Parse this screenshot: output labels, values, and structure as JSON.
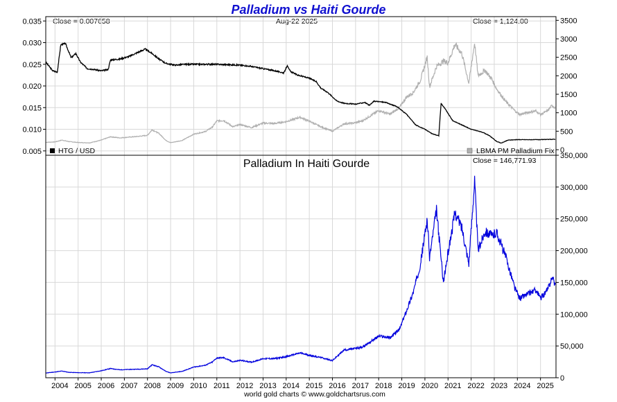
{
  "chart_data": [
    {
      "type": "line",
      "title": "Palladium vs Haiti Gourde",
      "date_label": "Aug-22  2025",
      "x_ticks": [
        "2004",
        "2005",
        "2006",
        "2007",
        "2008",
        "2009",
        "2010",
        "2011",
        "2012",
        "2013",
        "2014",
        "2015",
        "2016",
        "2017",
        "2018",
        "2019",
        "2020",
        "2021",
        "2022",
        "2023",
        "2024",
        "2025"
      ],
      "left_axis": {
        "ylim": [
          0.004,
          0.036
        ],
        "ticks": [
          "0.035",
          "0.030",
          "0.025",
          "0.020",
          "0.015",
          "0.010",
          "0.005"
        ],
        "tick_values": [
          0.035,
          0.03,
          0.025,
          0.02,
          0.015,
          0.01,
          0.005
        ]
      },
      "right_axis": {
        "ylim": [
          -150,
          3600
        ],
        "ticks": [
          "3500",
          "3000",
          "2500",
          "2000",
          "1500",
          "1000",
          "500",
          "0"
        ],
        "tick_values": [
          3500,
          3000,
          2500,
          2000,
          1500,
          1000,
          500,
          0
        ]
      },
      "close_left": "Close = 0.007658",
      "close_right": "Close = 1,124.00",
      "grid": true,
      "series": [
        {
          "name": "HTG / USD",
          "axis": "left",
          "color": "#000000",
          "points": [
            [
              2003.6,
              0.0255
            ],
            [
              2003.9,
              0.0235
            ],
            [
              2004.1,
              0.0232
            ],
            [
              2004.25,
              0.0295
            ],
            [
              2004.45,
              0.0298
            ],
            [
              2004.7,
              0.0265
            ],
            [
              2004.9,
              0.0275
            ],
            [
              2005.1,
              0.0255
            ],
            [
              2005.4,
              0.024
            ],
            [
              2005.7,
              0.0238
            ],
            [
              2006.0,
              0.0235
            ],
            [
              2006.3,
              0.0238
            ],
            [
              2006.4,
              0.026
            ],
            [
              2006.8,
              0.0262
            ],
            [
              2007.2,
              0.0268
            ],
            [
              2007.6,
              0.0278
            ],
            [
              2007.9,
              0.0285
            ],
            [
              2008.2,
              0.0275
            ],
            [
              2008.5,
              0.0262
            ],
            [
              2008.8,
              0.0252
            ],
            [
              2009.2,
              0.0248
            ],
            [
              2009.6,
              0.025
            ],
            [
              2010.0,
              0.025
            ],
            [
              2011.0,
              0.025
            ],
            [
              2012.0,
              0.0248
            ],
            [
              2012.5,
              0.0245
            ],
            [
              2013.0,
              0.024
            ],
            [
              2013.5,
              0.0235
            ],
            [
              2013.9,
              0.023
            ],
            [
              2014.05,
              0.0248
            ],
            [
              2014.1,
              0.024
            ],
            [
              2014.2,
              0.0233
            ],
            [
              2014.5,
              0.0225
            ],
            [
              2015.0,
              0.0218
            ],
            [
              2015.3,
              0.021
            ],
            [
              2015.5,
              0.0195
            ],
            [
              2015.8,
              0.0185
            ],
            [
              2016.2,
              0.0165
            ],
            [
              2016.5,
              0.016
            ],
            [
              2017.0,
              0.0158
            ],
            [
              2017.4,
              0.0162
            ],
            [
              2017.6,
              0.0155
            ],
            [
              2017.8,
              0.0165
            ],
            [
              2018.3,
              0.0162
            ],
            [
              2018.8,
              0.0152
            ],
            [
              2019.2,
              0.0135
            ],
            [
              2019.6,
              0.011
            ],
            [
              2020.0,
              0.01
            ],
            [
              2020.3,
              0.009
            ],
            [
              2020.6,
              0.0085
            ],
            [
              2020.7,
              0.016
            ],
            [
              2020.9,
              0.0145
            ],
            [
              2021.2,
              0.012
            ],
            [
              2021.6,
              0.011
            ],
            [
              2022.0,
              0.01
            ],
            [
              2022.5,
              0.0093
            ],
            [
              2022.8,
              0.0085
            ],
            [
              2023.1,
              0.0072
            ],
            [
              2023.3,
              0.0068
            ],
            [
              2023.6,
              0.0075
            ],
            [
              2024.0,
              0.0076
            ],
            [
              2024.6,
              0.0076
            ],
            [
              2025.0,
              0.0076
            ],
            [
              2025.64,
              0.0077
            ]
          ]
        },
        {
          "name": "LBMA PM Palladium Fix",
          "axis": "right",
          "color": "#b0b0b0",
          "points": [
            [
              2003.6,
              200
            ],
            [
              2004.0,
              210
            ],
            [
              2004.3,
              260
            ],
            [
              2004.6,
              220
            ],
            [
              2005.0,
              195
            ],
            [
              2005.5,
              185
            ],
            [
              2006.0,
              260
            ],
            [
              2006.4,
              350
            ],
            [
              2006.8,
              320
            ],
            [
              2007.2,
              340
            ],
            [
              2007.6,
              360
            ],
            [
              2008.0,
              390
            ],
            [
              2008.2,
              540
            ],
            [
              2008.5,
              440
            ],
            [
              2008.8,
              250
            ],
            [
              2009.0,
              190
            ],
            [
              2009.5,
              250
            ],
            [
              2010.0,
              420
            ],
            [
              2010.5,
              490
            ],
            [
              2010.8,
              610
            ],
            [
              2011.0,
              780
            ],
            [
              2011.3,
              790
            ],
            [
              2011.7,
              620
            ],
            [
              2012.0,
              680
            ],
            [
              2012.5,
              600
            ],
            [
              2013.0,
              720
            ],
            [
              2013.5,
              710
            ],
            [
              2014.0,
              760
            ],
            [
              2014.6,
              880
            ],
            [
              2015.0,
              770
            ],
            [
              2015.5,
              620
            ],
            [
              2016.0,
              500
            ],
            [
              2016.5,
              700
            ],
            [
              2016.9,
              720
            ],
            [
              2017.3,
              780
            ],
            [
              2017.7,
              940
            ],
            [
              2018.0,
              1060
            ],
            [
              2018.5,
              960
            ],
            [
              2018.9,
              1140
            ],
            [
              2019.2,
              1420
            ],
            [
              2019.5,
              1550
            ],
            [
              2019.8,
              1870
            ],
            [
              2020.1,
              2500
            ],
            [
              2020.2,
              1700
            ],
            [
              2020.5,
              2250
            ],
            [
              2020.8,
              2400
            ],
            [
              2021.0,
              2350
            ],
            [
              2021.3,
              2850
            ],
            [
              2021.6,
              2600
            ],
            [
              2021.9,
              1800
            ],
            [
              2022.15,
              2900
            ],
            [
              2022.3,
              2000
            ],
            [
              2022.6,
              2150
            ],
            [
              2022.9,
              1900
            ],
            [
              2023.1,
              1650
            ],
            [
              2023.5,
              1300
            ],
            [
              2023.9,
              1050
            ],
            [
              2024.1,
              950
            ],
            [
              2024.4,
              1000
            ],
            [
              2024.8,
              1050
            ],
            [
              2025.0,
              950
            ],
            [
              2025.3,
              1050
            ],
            [
              2025.5,
              1200
            ],
            [
              2025.64,
              1124
            ]
          ]
        }
      ],
      "legend": "bottom",
      "legend_entries": [
        "HTG / USD",
        "LBMA PM Palladium Fix"
      ]
    },
    {
      "type": "line",
      "title": "Palladium In Haiti Gourde",
      "close_label": "Close = 146,771.93",
      "x_ticks": [
        "2004",
        "2005",
        "2006",
        "2007",
        "2008",
        "2009",
        "2010",
        "2011",
        "2012",
        "2013",
        "2014",
        "2015",
        "2016",
        "2017",
        "2018",
        "2019",
        "2020",
        "2021",
        "2022",
        "2023",
        "2024",
        "2025"
      ],
      "right_axis": {
        "ylim": [
          0,
          350000
        ],
        "ticks": [
          "350,000",
          "300,000",
          "250,000",
          "200,000",
          "150,000",
          "100,000",
          "50,000",
          "0"
        ],
        "tick_values": [
          350000,
          300000,
          250000,
          200000,
          150000,
          100000,
          50000,
          0
        ]
      },
      "grid": true,
      "series": [
        {
          "name": "Palladium In Haiti Gourde",
          "color": "#0000dd",
          "points": [
            [
              2003.6,
              7500
            ],
            [
              2004.0,
              9000
            ],
            [
              2004.3,
              10500
            ],
            [
              2004.6,
              8500
            ],
            [
              2005.0,
              8000
            ],
            [
              2005.5,
              7800
            ],
            [
              2006.0,
              11000
            ],
            [
              2006.4,
              14500
            ],
            [
              2006.8,
              12500
            ],
            [
              2007.2,
              13000
            ],
            [
              2007.6,
              13500
            ],
            [
              2008.0,
              14000
            ],
            [
              2008.2,
              20500
            ],
            [
              2008.5,
              17000
            ],
            [
              2008.8,
              10000
            ],
            [
              2009.0,
              7600
            ],
            [
              2009.5,
              10000
            ],
            [
              2010.0,
              16800
            ],
            [
              2010.5,
              19600
            ],
            [
              2010.8,
              24500
            ],
            [
              2011.0,
              31200
            ],
            [
              2011.3,
              31500
            ],
            [
              2011.7,
              24900
            ],
            [
              2012.0,
              27400
            ],
            [
              2012.5,
              24500
            ],
            [
              2013.0,
              30000
            ],
            [
              2013.5,
              30200
            ],
            [
              2014.0,
              33000
            ],
            [
              2014.6,
              39000
            ],
            [
              2015.0,
              35300
            ],
            [
              2015.5,
              31800
            ],
            [
              2016.0,
              27000
            ],
            [
              2016.5,
              43700
            ],
            [
              2016.9,
              45500
            ],
            [
              2017.3,
              48100
            ],
            [
              2017.7,
              58000
            ],
            [
              2018.0,
              65400
            ],
            [
              2018.5,
              63200
            ],
            [
              2018.9,
              76000
            ],
            [
              2019.2,
              105000
            ],
            [
              2019.5,
              135000
            ],
            [
              2019.8,
              178000
            ],
            [
              2020.1,
              250000
            ],
            [
              2020.2,
              189000
            ],
            [
              2020.5,
              264000
            ],
            [
              2020.8,
              150000
            ],
            [
              2021.0,
              196000
            ],
            [
              2021.3,
              260000
            ],
            [
              2021.6,
              236000
            ],
            [
              2021.9,
              180000
            ],
            [
              2022.15,
              311000
            ],
            [
              2022.3,
              200000
            ],
            [
              2022.6,
              231000
            ],
            [
              2022.9,
              223000
            ],
            [
              2023.1,
              229000
            ],
            [
              2023.5,
              190000
            ],
            [
              2023.9,
              140000
            ],
            [
              2024.1,
              125000
            ],
            [
              2024.4,
              131000
            ],
            [
              2024.8,
              138000
            ],
            [
              2025.0,
              125000
            ],
            [
              2025.3,
              138000
            ],
            [
              2025.5,
              158000
            ],
            [
              2025.64,
              146772
            ]
          ]
        }
      ]
    }
  ],
  "footer": "world gold charts © www.goldchartsrus.com"
}
